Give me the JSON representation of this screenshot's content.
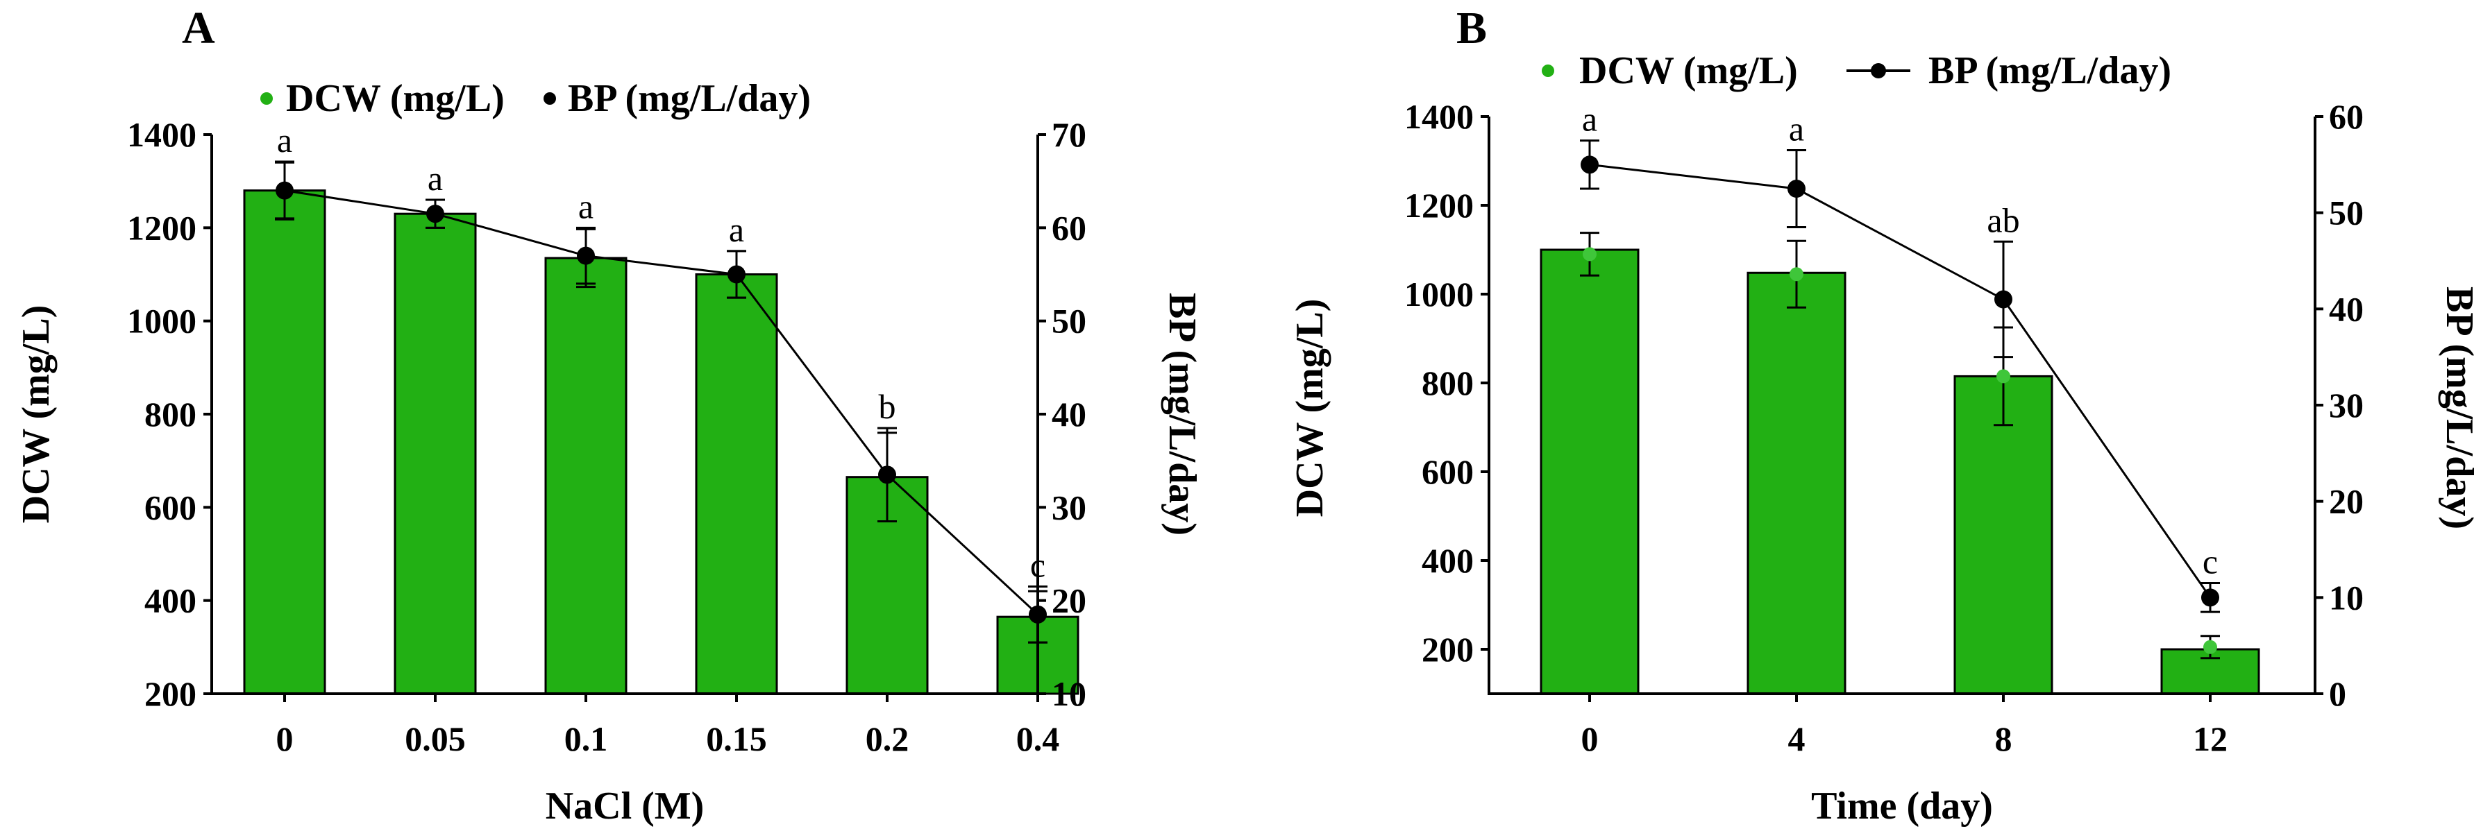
{
  "chart_data": [
    {
      "panel": "A",
      "type": "bar",
      "categories": [
        "0",
        "0.05",
        "0.1",
        "0.15",
        "0.2",
        "0.4"
      ],
      "xlabel": "NaCl (M)",
      "legend": [
        "DCW (mg/L)",
        "BP (mg/L/day)"
      ],
      "series": [
        {
          "name": "DCW (mg/L)",
          "kind": "bar",
          "axis": "left",
          "values": [
            1280,
            1230,
            1135,
            1100,
            665,
            365
          ],
          "errors": [
            62,
            30,
            62,
            50,
            95,
            55
          ],
          "color": "#22b014"
        },
        {
          "name": "BP (mg/L/day)",
          "kind": "line",
          "axis": "right",
          "values": [
            64,
            61.5,
            57,
            55,
            33.5,
            18.5
          ],
          "errors": [
            3,
            1.5,
            3,
            2.5,
            5,
            3
          ],
          "color": "#000000"
        }
      ],
      "significance": [
        "a",
        "a",
        "a",
        "a",
        "b",
        "c"
      ],
      "y_left": {
        "label": "DCW (mg/L)",
        "lim": [
          200,
          1400
        ],
        "ticks": [
          200,
          400,
          600,
          800,
          1000,
          1200,
          1400
        ]
      },
      "y_right": {
        "label": "BP (mg/L/day)",
        "lim": [
          10,
          70
        ],
        "ticks": [
          10,
          20,
          30,
          40,
          50,
          60,
          70
        ]
      }
    },
    {
      "panel": "B",
      "type": "bar",
      "categories": [
        "0",
        "4",
        "8",
        "12"
      ],
      "xlabel": "Time (day)",
      "legend": [
        "DCW (mg/L)",
        "BP (mg/L/day)"
      ],
      "series": [
        {
          "name": "DCW (mg/L)",
          "kind": "bar",
          "axis": "left",
          "values": [
            1100,
            1048,
            815,
            200
          ],
          "errors": [
            48,
            75,
            110,
            25
          ],
          "marker_values": [
            1090,
            1045,
            815,
            205
          ],
          "color": "#22b014"
        },
        {
          "name": "BP (mg/L/day)",
          "kind": "line",
          "axis": "right",
          "values": [
            55,
            52.5,
            41,
            10
          ],
          "errors": [
            2.5,
            4,
            6,
            1.5
          ],
          "color": "#000000"
        }
      ],
      "significance": [
        "a",
        "a",
        "ab",
        "c"
      ],
      "y_left": {
        "label": "DCW (mg/L)",
        "lim": [
          100,
          1400
        ],
        "ticks": [
          200,
          400,
          600,
          800,
          1000,
          1200,
          1400
        ]
      },
      "y_right": {
        "label": "BP (mg/L/day)",
        "lim": [
          0,
          60
        ],
        "ticks": [
          0,
          10,
          20,
          30,
          40,
          50,
          60
        ]
      }
    }
  ]
}
